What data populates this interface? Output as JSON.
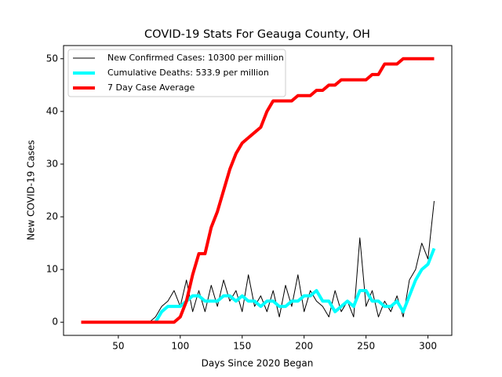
{
  "chart_data": {
    "type": "line",
    "title": "COVID-19 Stats For Geauga County, OH",
    "x_label": "Days Since 2020 Began",
    "y_label": "New COVID-19 Cases",
    "x": [
      20,
      25,
      30,
      35,
      40,
      45,
      50,
      55,
      60,
      65,
      70,
      75,
      80,
      85,
      90,
      95,
      100,
      105,
      110,
      115,
      120,
      125,
      130,
      135,
      140,
      145,
      150,
      155,
      160,
      165,
      170,
      175,
      180,
      185,
      190,
      195,
      200,
      205,
      210,
      215,
      220,
      225,
      230,
      235,
      240,
      245,
      250,
      255,
      260,
      265,
      270,
      275,
      280,
      285,
      290,
      295,
      300,
      305
    ],
    "series": [
      {
        "name": "New Confirmed Cases: 10300 per million",
        "color": "#000000",
        "width": 1,
        "values": [
          0,
          0,
          0,
          0,
          0,
          0,
          0,
          0,
          0,
          0,
          0,
          0,
          1,
          3,
          4,
          6,
          3,
          8,
          2,
          6,
          2,
          7,
          3,
          8,
          4,
          6,
          2,
          9,
          3,
          5,
          2,
          6,
          1,
          7,
          3,
          9,
          2,
          6,
          4,
          3,
          1,
          6,
          2,
          4,
          1,
          16,
          3,
          6,
          1,
          4,
          2,
          5,
          1,
          8,
          10,
          15,
          12,
          23
        ]
      },
      {
        "name": "Cumulative Deaths: 533.9 per million",
        "color": "#00ffff",
        "width": 4,
        "values": [
          null,
          null,
          null,
          null,
          null,
          null,
          null,
          null,
          null,
          null,
          null,
          null,
          0,
          2,
          3,
          3,
          3,
          4,
          5,
          5,
          4,
          4,
          4,
          5,
          5,
          4,
          5,
          4,
          4,
          3,
          4,
          4,
          3,
          3,
          4,
          4,
          5,
          5,
          6,
          4,
          4,
          2,
          3,
          4,
          3,
          6,
          6,
          4,
          4,
          3,
          3,
          4,
          2,
          5,
          8,
          10,
          11,
          14
        ]
      },
      {
        "name": "7 Day Case Average",
        "color": "#ff0000",
        "width": 4,
        "values": [
          0,
          0,
          0,
          0,
          0,
          0,
          0,
          0,
          0,
          0,
          0,
          0,
          0,
          0,
          0,
          0,
          1,
          4,
          9,
          13,
          13,
          18,
          21,
          25,
          29,
          32,
          34,
          35,
          36,
          37,
          40,
          42,
          42,
          42,
          42,
          43,
          43,
          43,
          44,
          44,
          45,
          45,
          46,
          46,
          46,
          46,
          46,
          47,
          47,
          49,
          49,
          49,
          50,
          50,
          50,
          50,
          50,
          50
        ]
      }
    ],
    "xlim": [
      5.75,
      319.25
    ],
    "ylim": [
      -2.5,
      52.5
    ],
    "xticks": [
      50,
      100,
      150,
      200,
      250,
      300
    ],
    "yticks": [
      0,
      10,
      20,
      30,
      40,
      50
    ],
    "legend": "upper left"
  }
}
